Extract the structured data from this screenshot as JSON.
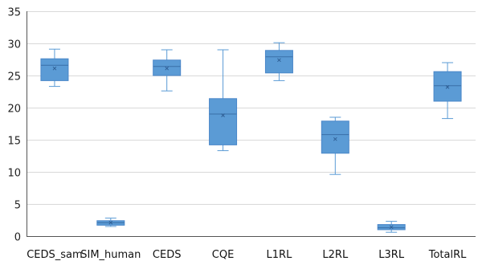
{
  "chart_data": {
    "type": "box",
    "categories": [
      "CEDS_sam",
      "SIM_human",
      "CEDS",
      "CQE",
      "L1RL",
      "L2RL",
      "L3RL",
      "TotalRL"
    ],
    "boxes": [
      {
        "min": 23.3,
        "q1": 24.2,
        "median": 26.6,
        "q3": 27.6,
        "max": 29.1,
        "mean": 26.1
      },
      {
        "min": 1.5,
        "q1": 1.7,
        "median": 2.1,
        "q3": 2.4,
        "max": 2.8,
        "mean": 2.1
      },
      {
        "min": 22.6,
        "q1": 25.0,
        "median": 26.4,
        "q3": 27.4,
        "max": 29.0,
        "mean": 26.1
      },
      {
        "min": 13.3,
        "q1": 14.2,
        "median": 19.0,
        "q3": 21.4,
        "max": 29.0,
        "mean": 18.8
      },
      {
        "min": 24.2,
        "q1": 25.4,
        "median": 27.9,
        "q3": 28.9,
        "max": 30.1,
        "mean": 27.4
      },
      {
        "min": 9.6,
        "q1": 12.9,
        "median": 15.8,
        "q3": 17.9,
        "max": 18.5,
        "mean": 15.1
      },
      {
        "min": 0.6,
        "q1": 1.0,
        "median": 1.3,
        "q3": 1.8,
        "max": 2.3,
        "mean": 1.4
      },
      {
        "min": 18.3,
        "q1": 21.0,
        "median": 23.4,
        "q3": 25.6,
        "max": 27.0,
        "mean": 23.2
      }
    ],
    "ylim": [
      0,
      35
    ],
    "yticks": [
      "0",
      "5",
      "10",
      "15",
      "20",
      "25",
      "30",
      "35"
    ],
    "grid": true,
    "box_color": "#5b9bd5",
    "title": "",
    "xlabel": "",
    "ylabel": ""
  }
}
